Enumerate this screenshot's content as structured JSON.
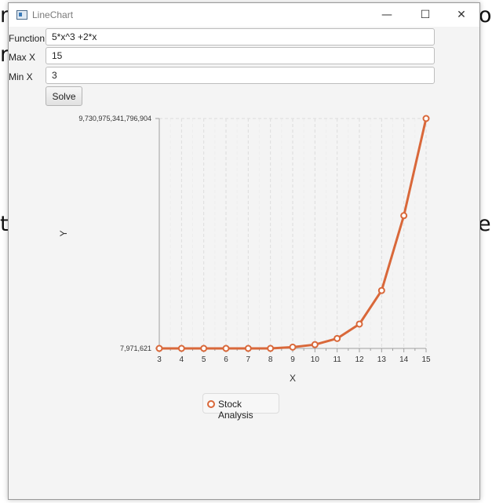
{
  "window": {
    "title": "LineChart",
    "controls": {
      "minimize": "—",
      "maximize": "☐",
      "close": "✕"
    }
  },
  "background_text": [
    "n",
    "o",
    "rg",
    "t",
    "e"
  ],
  "form": {
    "function_label": "Function",
    "function_value": "5*x^3 +2*x",
    "max_label": "Max X",
    "max_value": "15",
    "min_label": "Min X",
    "min_value": "3",
    "solve_label": "Solve"
  },
  "chart_data": {
    "type": "line",
    "title": "",
    "xlabel": "X",
    "ylabel": "Y",
    "x": [
      3,
      4,
      5,
      6,
      7,
      8,
      9,
      10,
      11,
      12,
      13,
      14,
      15
    ],
    "x_ticks": [
      "3",
      "4",
      "5",
      "6",
      "7",
      "8",
      "9",
      "10",
      "11",
      "12",
      "13",
      "14",
      "15"
    ],
    "y_ticks": [
      "7,971,621",
      "9,730,975,341,796,904"
    ],
    "ylim": [
      7971621,
      9730975341796904
    ],
    "series": [
      {
        "name": "Stock Analysis",
        "values": [
          7971621,
          7971621,
          7971621,
          7971621,
          7971621,
          7971621,
          54000000000000,
          160000000000000,
          420000000000000,
          1030000000000000,
          2450000000000000,
          5620000000000000,
          9730975341796904
        ]
      }
    ],
    "grid": true,
    "legend_position": "bottom",
    "colors": {
      "series": "#d9683a",
      "grid": "#dddddd"
    }
  }
}
